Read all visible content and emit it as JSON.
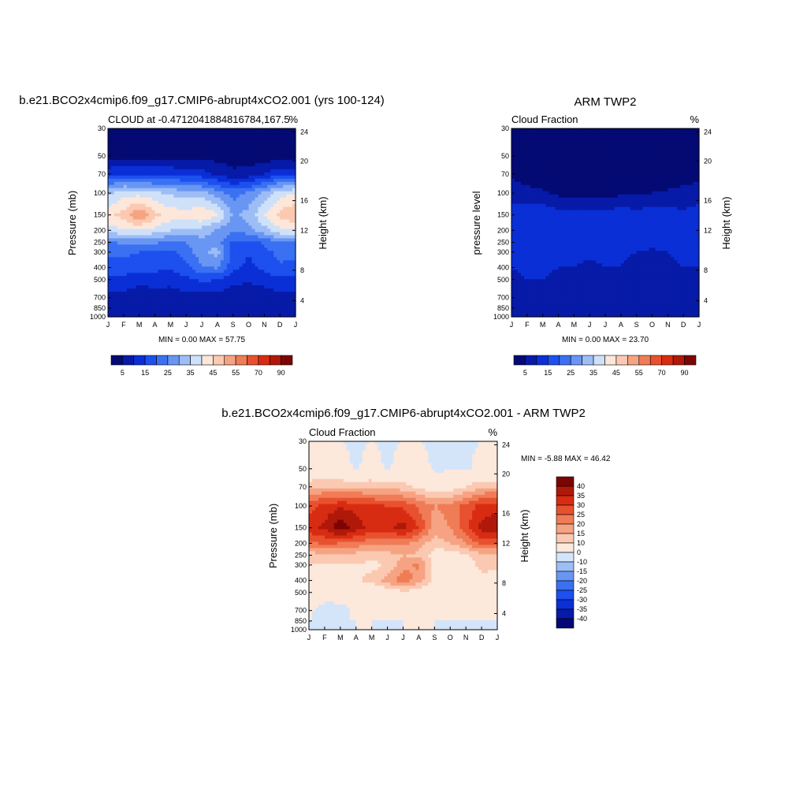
{
  "palettes": {
    "abs": [
      "#040a73",
      "#071aa8",
      "#0b2fd6",
      "#1d50ee",
      "#3a70f2",
      "#6996f3",
      "#9dbdf6",
      "#cfe1f9",
      "#fde7da",
      "#fbc9b1",
      "#f6a383",
      "#f07c57",
      "#e8512f",
      "#d82c12",
      "#b0180a",
      "#7c0503"
    ],
    "diff": [
      "#040a73",
      "#071aa8",
      "#0b2fd6",
      "#1d50ee",
      "#3a70f2",
      "#6996f3",
      "#9dbdf6",
      "#d4e5fa",
      "#fde8dc",
      "#fbc9b1",
      "#f6a383",
      "#f07c57",
      "#e8512f",
      "#d82c12",
      "#b0180a",
      "#7c0503"
    ]
  },
  "chart_data": [
    {
      "type": "heatmap",
      "title": "b.e21.BCO2x4cmip6.f09_g17.CMIP6-abrupt4xCO2.001 (yrs 100-124)",
      "subtitle_left": "CLOUD at -0.4712041884816784,167.5",
      "subtitle_right": "%",
      "ylabel": "Pressure (mb)",
      "ylabel_right": "Height (km)",
      "x_ticklabels": [
        "J",
        "F",
        "M",
        "A",
        "M",
        "J",
        "J",
        "A",
        "S",
        "O",
        "N",
        "D",
        "J"
      ],
      "y_ticklabels": [
        "30",
        "50",
        "70",
        "100",
        "150",
        "200",
        "250",
        "300",
        "400",
        "500",
        "700",
        "850",
        "1000"
      ],
      "y_ticks_mb": [
        30,
        50,
        70,
        100,
        150,
        200,
        250,
        300,
        400,
        500,
        700,
        850,
        1000
      ],
      "height_ticklabels": [
        "4",
        "8",
        "12",
        "16",
        "20",
        "24"
      ],
      "height_ticks_mb": [
        740,
        420,
        200,
        115,
        55,
        32
      ],
      "levels": [
        30,
        50,
        70,
        100,
        150,
        200,
        250,
        300,
        400,
        500,
        700,
        850,
        1000
      ],
      "values": [
        [
          0,
          0,
          0,
          0,
          0,
          0,
          0,
          0,
          0,
          0,
          0,
          0,
          0
        ],
        [
          2,
          3,
          3,
          3,
          3,
          3,
          3,
          3,
          3,
          2,
          2,
          2,
          2
        ],
        [
          14,
          15,
          14,
          14,
          14,
          13,
          12,
          9,
          6,
          7,
          10,
          14,
          14
        ],
        [
          34,
          38,
          38,
          36,
          34,
          33,
          32,
          27,
          23,
          26,
          32,
          38,
          40
        ],
        [
          44,
          47,
          55,
          47,
          43,
          42,
          45,
          41,
          29,
          32,
          40,
          47,
          50
        ],
        [
          37,
          40,
          40,
          38,
          35,
          34,
          33,
          29,
          26,
          28,
          33,
          39,
          39
        ],
        [
          24,
          26,
          27,
          26,
          24,
          25,
          28,
          27,
          19,
          18,
          21,
          25,
          25
        ],
        [
          21,
          22,
          20,
          20,
          19,
          22,
          29,
          32,
          18,
          15,
          18,
          22,
          22
        ],
        [
          18,
          17,
          16,
          16,
          16,
          18,
          24,
          26,
          16,
          14,
          16,
          19,
          18
        ],
        [
          13,
          14,
          13,
          13,
          12,
          14,
          16,
          15,
          12,
          11,
          13,
          14,
          13
        ],
        [
          8,
          8,
          5,
          6,
          7,
          8,
          8,
          8,
          6,
          5,
          6,
          8,
          8
        ],
        [
          7,
          7,
          7,
          7,
          7,
          7,
          7,
          7,
          6,
          6,
          6,
          7,
          7
        ],
        [
          6,
          6,
          6,
          6,
          6,
          6,
          6,
          6,
          6,
          6,
          6,
          6,
          6
        ]
      ],
      "clevels": [
        5,
        10,
        15,
        20,
        25,
        30,
        35,
        40,
        45,
        50,
        55,
        60,
        70,
        80,
        90
      ],
      "colorbar_labels": [
        "5",
        "15",
        "25",
        "35",
        "45",
        "55",
        "70",
        "90"
      ],
      "min_max": "MIN =   0.00 MAX =  57.75"
    },
    {
      "type": "heatmap",
      "title": "ARM TWP2",
      "subtitle_left": "Cloud Fraction",
      "subtitle_right": "%",
      "ylabel": "pressure level",
      "ylabel_right": "Height (km)",
      "x_ticklabels": [
        "J",
        "F",
        "M",
        "A",
        "M",
        "J",
        "J",
        "A",
        "S",
        "O",
        "N",
        "D",
        "J"
      ],
      "y_ticklabels": [
        "30",
        "50",
        "70",
        "100",
        "150",
        "200",
        "250",
        "300",
        "400",
        "500",
        "700",
        "850",
        "1000"
      ],
      "y_ticks_mb": [
        30,
        50,
        70,
        100,
        150,
        200,
        250,
        300,
        400,
        500,
        700,
        850,
        1000
      ],
      "height_ticklabels": [
        "4",
        "8",
        "12",
        "16",
        "20",
        "24"
      ],
      "height_ticks_mb": [
        740,
        420,
        200,
        115,
        55,
        32
      ],
      "levels": [
        30,
        50,
        70,
        100,
        150,
        200,
        250,
        300,
        400,
        500,
        700,
        850,
        1000
      ],
      "values": [
        [
          0,
          0,
          0,
          0,
          0,
          0,
          0,
          0,
          0,
          0,
          0,
          0,
          0
        ],
        [
          0,
          0,
          0,
          0,
          0,
          0,
          0,
          0,
          0,
          0,
          0,
          0,
          0
        ],
        [
          4,
          2,
          1,
          0,
          0,
          0,
          0,
          0,
          0,
          0,
          1,
          2,
          3
        ],
        [
          8,
          7,
          6,
          4,
          3,
          3,
          3,
          4,
          4,
          5,
          6,
          7,
          8
        ],
        [
          12,
          13,
          14,
          12,
          12,
          12,
          12,
          13,
          12,
          13,
          12,
          11,
          12
        ],
        [
          13,
          14,
          15,
          14,
          13,
          13,
          13,
          14,
          13,
          13,
          12,
          12,
          12
        ],
        [
          12,
          13,
          14,
          13,
          12,
          12,
          13,
          13,
          12,
          12,
          12,
          12,
          12
        ],
        [
          11,
          12,
          12,
          11,
          11,
          11,
          11,
          11,
          10,
          9,
          10,
          11,
          11
        ],
        [
          10,
          11,
          11,
          10,
          10,
          9,
          10,
          10,
          8,
          7,
          9,
          10,
          10
        ],
        [
          9,
          10,
          10,
          9,
          9,
          8,
          8,
          8,
          7,
          6,
          8,
          9,
          9
        ],
        [
          8,
          8,
          7,
          7,
          6,
          7,
          6,
          7,
          5,
          5,
          7,
          8,
          8
        ],
        [
          7,
          7,
          7,
          7,
          7,
          7,
          7,
          7,
          7,
          7,
          7,
          7,
          7
        ],
        [
          6,
          6,
          6,
          6,
          6,
          6,
          6,
          6,
          6,
          6,
          6,
          6,
          6
        ]
      ],
      "clevels": [
        5,
        10,
        15,
        20,
        25,
        30,
        35,
        40,
        45,
        50,
        55,
        60,
        70,
        80,
        90
      ],
      "colorbar_labels": [
        "5",
        "15",
        "25",
        "35",
        "45",
        "55",
        "70",
        "90"
      ],
      "min_max": "MIN =   0.00 MAX =  23.70"
    },
    {
      "type": "heatmap",
      "title": "b.e21.BCO2x4cmip6.f09_g17.CMIP6-abrupt4xCO2.001 - ARM TWP2",
      "subtitle_left": "Cloud Fraction",
      "subtitle_right": "%",
      "ylabel": "Pressure (mb)",
      "ylabel_right": "Height (km)",
      "x_ticklabels": [
        "J",
        "F",
        "M",
        "A",
        "M",
        "J",
        "J",
        "A",
        "S",
        "O",
        "N",
        "D",
        "J"
      ],
      "y_ticklabels": [
        "30",
        "50",
        "70",
        "100",
        "150",
        "200",
        "250",
        "300",
        "400",
        "500",
        "700",
        "850",
        "1000"
      ],
      "y_ticks_mb": [
        30,
        50,
        70,
        100,
        150,
        200,
        250,
        300,
        400,
        500,
        700,
        850,
        1000
      ],
      "height_ticklabels": [
        "4",
        "8",
        "12",
        "16",
        "20",
        "24"
      ],
      "height_ticks_mb": [
        740,
        420,
        200,
        115,
        55,
        32
      ],
      "levels": [
        30,
        50,
        70,
        100,
        150,
        200,
        250,
        300,
        400,
        500,
        700,
        850,
        1000
      ],
      "values": [
        [
          0,
          0,
          0,
          -1,
          0,
          -1,
          0,
          0,
          -1,
          -1,
          -1,
          0,
          0
        ],
        [
          2,
          3,
          3,
          -1,
          3,
          -1,
          3,
          3,
          -1,
          -1,
          -1,
          2,
          2
        ],
        [
          14,
          15,
          14,
          14,
          14,
          13,
          12,
          9,
          6,
          7,
          10,
          14,
          14
        ],
        [
          28,
          32,
          34,
          33,
          31,
          30,
          29,
          24,
          20,
          22,
          27,
          32,
          33
        ],
        [
          33,
          36,
          44,
          38,
          33,
          34,
          37,
          30,
          17,
          20,
          28,
          37,
          39
        ],
        [
          24,
          26,
          25,
          23,
          22,
          21,
          22,
          17,
          13,
          15,
          20,
          27,
          27
        ],
        [
          12,
          13,
          13,
          13,
          12,
          13,
          15,
          14,
          7,
          6,
          9,
          13,
          13
        ],
        [
          10,
          10,
          9,
          10,
          8,
          11,
          18,
          21,
          8,
          6,
          8,
          11,
          11
        ],
        [
          8,
          5,
          6,
          9,
          12,
          17,
          24,
          17,
          9,
          7,
          7,
          9,
          8
        ],
        [
          4,
          4,
          3,
          4,
          4,
          6,
          8,
          7,
          5,
          5,
          5,
          5,
          4
        ],
        [
          1,
          -3,
          -2,
          1,
          1,
          1,
          1,
          1,
          1,
          0,
          1,
          1,
          1
        ],
        [
          0,
          -1,
          0,
          0,
          0,
          0,
          0,
          0,
          0,
          0,
          0,
          0,
          0
        ],
        [
          -1,
          -1,
          -1,
          0,
          0,
          -1,
          0,
          0,
          0,
          -1,
          -1,
          -1,
          0
        ]
      ],
      "clevels": [
        -40,
        -35,
        -30,
        -25,
        -20,
        -15,
        -10,
        0,
        10,
        15,
        20,
        25,
        30,
        35,
        40
      ],
      "colorbar_labels": [
        "40",
        "35",
        "30",
        "25",
        "20",
        "15",
        "10",
        "0",
        "-10",
        "-15",
        "-20",
        "-25",
        "-30",
        "-35",
        "-40"
      ],
      "min_max": "MIN =  -5.88 MAX =  46.42"
    }
  ]
}
